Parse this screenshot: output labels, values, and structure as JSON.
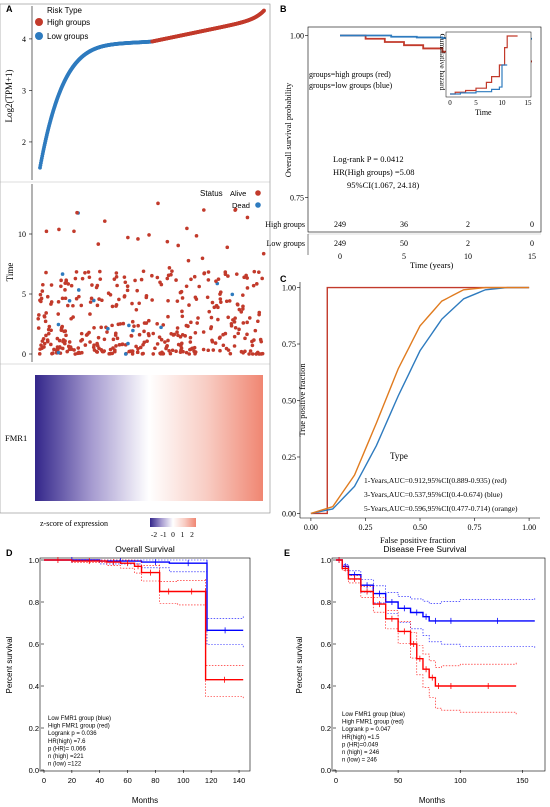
{
  "colors": {
    "high": "#c23a2b",
    "low": "#2e7bbf",
    "orange": "#e07b1f",
    "gepia_high": "#ff0000",
    "gepia_low": "#0000ff",
    "heat_low": "#3b2e8f",
    "heat_mid": "#ffffff",
    "heat_high": "#f08a78"
  },
  "panels": {
    "A": "A",
    "B": "B",
    "C": "C",
    "D": "D",
    "E": "E"
  },
  "chart_data": [
    {
      "id": "A-top",
      "type": "scatter",
      "ylabel": "Log2(TPM+1)",
      "legend_title": "Risk Type",
      "legend_items": [
        "High groups",
        "Low groups"
      ],
      "legend_placement": "top-left",
      "y_ticks": [
        "2",
        "3",
        "4"
      ],
      "ylim": [
        1.3,
        4.6
      ],
      "series": [
        {
          "name": "Low groups",
          "rank_range": [
            1,
            249
          ],
          "y_start": 1.5,
          "y_end": 3.95
        },
        {
          "name": "High groups",
          "rank_range": [
            250,
            498
          ],
          "y_start": 3.95,
          "y_end": 4.55
        }
      ]
    },
    {
      "id": "A-mid",
      "type": "scatter",
      "ylabel": "Time",
      "legend_title": "Status",
      "legend_items": [
        "Alive",
        "Dead"
      ],
      "legend_placement": "top-right",
      "y_ticks": [
        "0",
        "5",
        "10"
      ],
      "ylim": [
        -0.5,
        14
      ]
    },
    {
      "id": "A-heat",
      "type": "heatmap",
      "row_label": "FMR1",
      "colorbar_title": "z-score of expression",
      "colorbar_ticks": [
        "-2",
        "-1",
        "0",
        "1",
        "2"
      ]
    },
    {
      "id": "B",
      "type": "line",
      "ylabel": "Overall survival probability",
      "xlabel": "Time (years)",
      "x_ticks": [
        "0",
        "5",
        "10",
        "15"
      ],
      "y_ticks": [
        "0.75",
        "1.00"
      ],
      "xlim": [
        0,
        15
      ],
      "ylim": [
        0.7,
        1.01
      ],
      "legend_lines": [
        "groups=high groups (red)",
        "groups=low groups (blue)"
      ],
      "stats": [
        "Log-rank P = 0.0412",
        "HR(High groups) =5.08",
        "95%CI(1.067, 24.18)"
      ],
      "series": [
        {
          "name": "high groups",
          "x": [
            0,
            2,
            3.5,
            5,
            6.5,
            8,
            9.5,
            10.5,
            11,
            15
          ],
          "y": [
            1.0,
            0.995,
            0.99,
            0.985,
            0.98,
            0.975,
            0.97,
            0.965,
            0.96,
            0.96
          ]
        },
        {
          "name": "low groups",
          "x": [
            0,
            2,
            4,
            6,
            8,
            10,
            12,
            15
          ],
          "y": [
            1.0,
            1.0,
            0.998,
            0.997,
            0.996,
            0.995,
            0.995,
            0.995
          ]
        }
      ],
      "inset": {
        "ylabel": "Cumulative hazard",
        "xlabel": "Time",
        "x_ticks": [
          "0",
          "5",
          "10",
          "15"
        ],
        "series": [
          {
            "name": "high",
            "x": [
              0,
              1,
              3,
              5,
              7,
              8,
              9.5,
              10.5,
              11,
              13
            ],
            "y": [
              0,
              0.003,
              0.006,
              0.01,
              0.02,
              0.03,
              0.05,
              0.08,
              0.1,
              0.1
            ]
          },
          {
            "name": "low",
            "x": [
              0,
              2,
              5,
              8,
              9.5,
              10,
              11
            ],
            "y": [
              0,
              0.002,
              0.004,
              0.008,
              0.012,
              0.05,
              0.05
            ]
          }
        ]
      },
      "risk_table": {
        "rows": [
          "High groups",
          "Low groups"
        ],
        "columns": [
          "0",
          "5",
          "10",
          "15"
        ],
        "values": [
          [
            "249",
            "36",
            "2",
            "0"
          ],
          [
            "249",
            "50",
            "2",
            "0"
          ]
        ]
      }
    },
    {
      "id": "C",
      "type": "line",
      "ylabel": "True positive fraction",
      "xlabel": "False positive fraction",
      "x_ticks": [
        "0.00",
        "0.25",
        "0.50",
        "0.75",
        "1.00"
      ],
      "y_ticks": [
        "0.00",
        "0.25",
        "0.50",
        "0.75",
        "1.00"
      ],
      "xlim": [
        -0.05,
        1.05
      ],
      "ylim": [
        -0.02,
        1.02
      ],
      "legend_title": "Type",
      "legend_items": [
        "1-Years,AUC=0.912,95%CI(0.889-0.935) (red)",
        "3-Years,AUC=0.537,95%CI(0.4-0.674) (blue)",
        "5-Years,AUC=0.596,95%CI(0.477-0.714) (orange)"
      ],
      "series": [
        {
          "name": "1-Years",
          "x": [
            0,
            0.075,
            0.075,
            1.0
          ],
          "y": [
            0,
            0,
            1.0,
            1.0
          ]
        },
        {
          "name": "3-Years",
          "x": [
            0,
            0.1,
            0.2,
            0.3,
            0.4,
            0.5,
            0.6,
            0.7,
            0.8,
            0.9,
            1.0
          ],
          "y": [
            0,
            0.02,
            0.12,
            0.3,
            0.52,
            0.72,
            0.86,
            0.95,
            0.99,
            1.0,
            1.0
          ]
        },
        {
          "name": "5-Years",
          "x": [
            0,
            0.1,
            0.2,
            0.3,
            0.4,
            0.5,
            0.6,
            0.7,
            0.8,
            0.9,
            1.0
          ],
          "y": [
            0,
            0.03,
            0.17,
            0.4,
            0.64,
            0.83,
            0.94,
            0.99,
            1.0,
            1.0,
            1.0
          ]
        }
      ]
    },
    {
      "id": "D",
      "type": "line",
      "title": "Overall Survival",
      "ylabel": "Percent survival",
      "xlabel": "Months",
      "x_ticks": [
        "0",
        "20",
        "40",
        "60",
        "80",
        "100",
        "120",
        "140"
      ],
      "y_ticks": [
        "0.0",
        "0.2",
        "0.4",
        "0.6",
        "0.8",
        "1.0"
      ],
      "xlim": [
        0,
        145
      ],
      "ylim": [
        0,
        1.0
      ],
      "stats": [
        "Low FMR1 group (blue)",
        "High FMR1 group (red)",
        "Logrank p = 0.036",
        "HR(high) =7.6",
        "p (HR)= 0.066",
        "n (high) =221",
        "n (low) =122"
      ],
      "series": [
        {
          "name": "Low FMR1 group",
          "x": [
            0,
            40,
            70,
            90,
            117,
            117,
            143
          ],
          "y": [
            1.0,
            0.995,
            0.99,
            0.985,
            0.985,
            0.665,
            0.665
          ]
        },
        {
          "name": "High FMR1 group",
          "x": [
            0,
            20,
            45,
            55,
            65,
            70,
            83,
            83,
            96,
            116,
            116,
            143
          ],
          "y": [
            1.0,
            0.995,
            0.99,
            0.985,
            0.97,
            0.94,
            0.94,
            0.85,
            0.85,
            0.85,
            0.43,
            0.43
          ]
        }
      ]
    },
    {
      "id": "E",
      "type": "line",
      "title": "Disease Free Survival",
      "ylabel": "Percent survival",
      "xlabel": "Months",
      "x_ticks": [
        "0",
        "50",
        "100",
        "150"
      ],
      "y_ticks": [
        "0.0",
        "0.2",
        "0.4",
        "0.6",
        "0.8",
        "1.0"
      ],
      "xlim": [
        0,
        165
      ],
      "ylim": [
        0,
        1.0
      ],
      "stats": [
        "Low FMR1 group (blue)",
        "High FMR1 group (red)",
        "Logrank p = 0.047",
        "HR(high) =1.5",
        "p (HR)=0.049",
        "n (high) = 246",
        "n (low) = 246"
      ],
      "series": [
        {
          "name": "Low FMR1 group",
          "x": [
            0,
            5,
            10,
            20,
            30,
            40,
            50,
            60,
            70,
            75,
            85,
            100,
            160
          ],
          "y": [
            1.0,
            0.97,
            0.93,
            0.88,
            0.84,
            0.8,
            0.77,
            0.75,
            0.73,
            0.71,
            0.71,
            0.71,
            0.71
          ]
        },
        {
          "name": "High FMR1 group",
          "x": [
            0,
            5,
            10,
            20,
            30,
            40,
            50,
            60,
            65,
            70,
            75,
            80,
            85,
            100,
            145
          ],
          "y": [
            1.0,
            0.96,
            0.91,
            0.85,
            0.79,
            0.72,
            0.66,
            0.6,
            0.53,
            0.48,
            0.44,
            0.4,
            0.4,
            0.4,
            0.4
          ]
        }
      ]
    }
  ]
}
